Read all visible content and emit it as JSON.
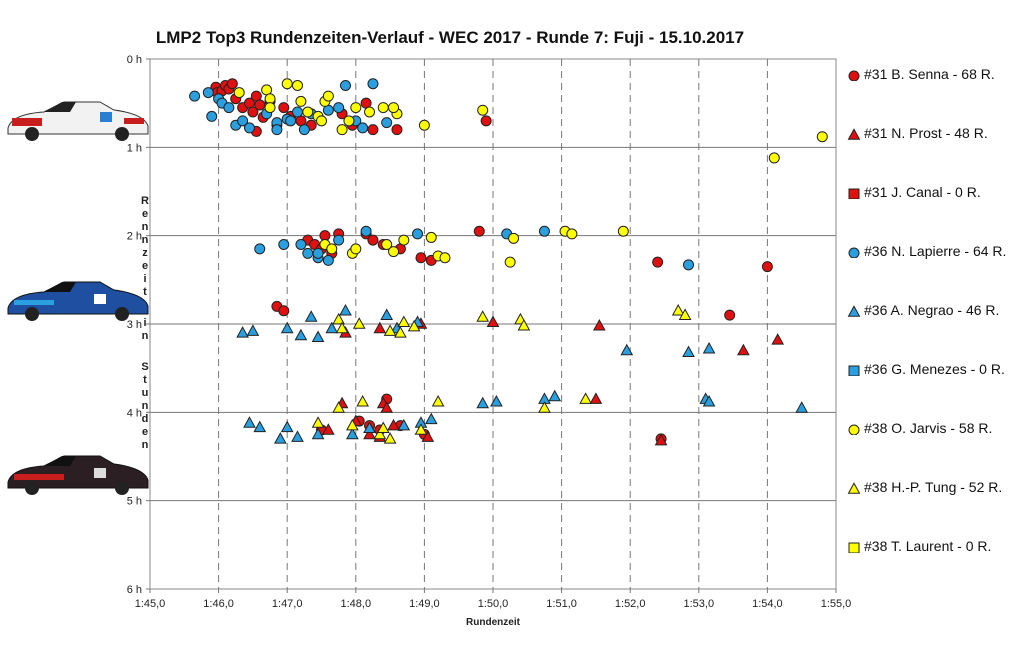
{
  "chart_data": {
    "type": "scatter",
    "title": "LMP2  Top3 Rundenzeiten-Verlauf  - WEC 2017  - Runde 7: Fuji  - 15.10.2017",
    "xlabel": "Rundenzeit",
    "ylabel": "Rennzeit in Stunden",
    "x_ticks": [
      "1:45,0",
      "1:46,0",
      "1:47,0",
      "1:48,0",
      "1:49,0",
      "1:50,0",
      "1:51,0",
      "1:52,0",
      "1:53,0",
      "1:54,0",
      "1:55,0"
    ],
    "y_ticks": [
      "0 h",
      "1 h",
      "2 h",
      "3 h",
      "4 h",
      "5 h",
      "6 h"
    ],
    "xlim": [
      105,
      115
    ],
    "ylim": [
      0,
      6
    ],
    "grid": "dashed-vertical, solid-horizontal",
    "legend_position": "right",
    "series": [
      {
        "name": "#31 B. Senna - 68 R.",
        "marker": "circle",
        "color": "#e01010",
        "points": [
          [
            105.96,
            0.32
          ],
          [
            105.98,
            0.38
          ],
          [
            106.05,
            0.36
          ],
          [
            106.1,
            0.3
          ],
          [
            106.15,
            0.34
          ],
          [
            106.2,
            0.28
          ],
          [
            106.25,
            0.45
          ],
          [
            106.35,
            0.55
          ],
          [
            106.45,
            0.5
          ],
          [
            106.5,
            0.6
          ],
          [
            106.55,
            0.42
          ],
          [
            106.6,
            0.52
          ],
          [
            106.65,
            0.66
          ],
          [
            106.75,
            0.48
          ],
          [
            106.85,
            0.75
          ],
          [
            106.95,
            0.55
          ],
          [
            107.05,
            0.65
          ],
          [
            107.2,
            0.7
          ],
          [
            107.35,
            0.75
          ],
          [
            107.8,
            0.62
          ],
          [
            107.95,
            0.75
          ],
          [
            108.15,
            0.5
          ],
          [
            108.25,
            0.8
          ],
          [
            108.6,
            0.8
          ],
          [
            106.55,
            0.82
          ],
          [
            109.9,
            0.7
          ],
          [
            107.3,
            2.05
          ],
          [
            107.4,
            2.1
          ],
          [
            107.5,
            2.15
          ],
          [
            107.55,
            2.0
          ],
          [
            107.65,
            2.2
          ],
          [
            107.75,
            1.98
          ],
          [
            108.15,
            1.98
          ],
          [
            108.25,
            2.05
          ],
          [
            108.4,
            2.1
          ],
          [
            108.65,
            2.15
          ],
          [
            108.95,
            2.25
          ],
          [
            109.1,
            2.28
          ],
          [
            109.8,
            1.95
          ],
          [
            112.4,
            2.3
          ],
          [
            114.0,
            2.35
          ],
          [
            106.85,
            2.8
          ],
          [
            106.95,
            2.85
          ],
          [
            113.45,
            2.9
          ],
          [
            108.45,
            3.85
          ],
          [
            108.65,
            4.15
          ],
          [
            107.5,
            4.2
          ],
          [
            108.2,
            4.15
          ],
          [
            108.05,
            4.1
          ],
          [
            108.35,
            4.2
          ],
          [
            109.0,
            4.25
          ],
          [
            112.45,
            4.3
          ]
        ]
      },
      {
        "name": "#31 N. Prost - 48 R.",
        "marker": "triangle",
        "color": "#e01010",
        "points": [
          [
            107.85,
            3.1
          ],
          [
            108.35,
            3.05
          ],
          [
            108.95,
            3.0
          ],
          [
            110.0,
            2.98
          ],
          [
            111.55,
            3.02
          ],
          [
            113.65,
            3.3
          ],
          [
            114.15,
            3.18
          ],
          [
            108.4,
            3.9
          ],
          [
            108.45,
            3.95
          ],
          [
            107.8,
            3.9
          ],
          [
            108.0,
            4.1
          ],
          [
            111.5,
            3.85
          ],
          [
            107.6,
            4.2
          ],
          [
            108.2,
            4.25
          ],
          [
            108.35,
            4.28
          ],
          [
            112.45,
            4.32
          ],
          [
            108.55,
            4.15
          ],
          [
            109.05,
            4.28
          ]
        ]
      },
      {
        "name": "#31 J. Canal - 0 R.",
        "marker": "square",
        "color": "#e01010",
        "points": []
      },
      {
        "name": "#36 N. Lapierre - 64 R.",
        "marker": "circle",
        "color": "#2a9fe0",
        "points": [
          [
            105.65,
            0.42
          ],
          [
            105.85,
            0.38
          ],
          [
            105.9,
            0.65
          ],
          [
            106.0,
            0.45
          ],
          [
            106.05,
            0.5
          ],
          [
            106.15,
            0.55
          ],
          [
            106.25,
            0.75
          ],
          [
            106.35,
            0.7
          ],
          [
            106.45,
            0.78
          ],
          [
            106.7,
            0.62
          ],
          [
            106.85,
            0.72
          ],
          [
            107.0,
            0.68
          ],
          [
            107.15,
            0.6
          ],
          [
            107.25,
            0.8
          ],
          [
            107.35,
            0.62
          ],
          [
            107.6,
            0.58
          ],
          [
            107.75,
            0.55
          ],
          [
            107.85,
            0.3
          ],
          [
            108.0,
            0.7
          ],
          [
            108.1,
            0.78
          ],
          [
            108.25,
            0.28
          ],
          [
            108.45,
            0.72
          ],
          [
            107.05,
            0.7
          ],
          [
            106.85,
            0.8
          ],
          [
            106.6,
            2.15
          ],
          [
            106.95,
            2.1
          ],
          [
            107.2,
            2.1
          ],
          [
            107.3,
            2.2
          ],
          [
            107.45,
            2.25
          ],
          [
            107.6,
            2.28
          ],
          [
            107.75,
            2.05
          ],
          [
            108.9,
            1.98
          ],
          [
            110.2,
            1.98
          ],
          [
            110.75,
            1.95
          ],
          [
            112.85,
            2.33
          ],
          [
            107.45,
            2.2
          ],
          [
            108.15,
            1.95
          ]
        ]
      },
      {
        "name": "#36 A. Negrao - 46 R.",
        "marker": "triangle",
        "color": "#2a9fe0",
        "points": [
          [
            106.35,
            3.1
          ],
          [
            106.5,
            3.08
          ],
          [
            107.0,
            3.05
          ],
          [
            107.2,
            3.13
          ],
          [
            107.35,
            2.92
          ],
          [
            107.45,
            3.15
          ],
          [
            107.85,
            2.85
          ],
          [
            107.65,
            3.05
          ],
          [
            108.45,
            2.9
          ],
          [
            108.6,
            3.05
          ],
          [
            108.9,
            2.98
          ],
          [
            111.95,
            3.3
          ],
          [
            112.85,
            3.32
          ],
          [
            113.15,
            3.28
          ],
          [
            109.85,
            3.9
          ],
          [
            110.05,
            3.88
          ],
          [
            110.75,
            3.85
          ],
          [
            110.9,
            3.82
          ],
          [
            113.1,
            3.85
          ],
          [
            114.5,
            3.95
          ],
          [
            106.45,
            4.12
          ],
          [
            106.6,
            4.17
          ],
          [
            106.9,
            4.3
          ],
          [
            107.0,
            4.17
          ],
          [
            107.15,
            4.28
          ],
          [
            107.45,
            4.25
          ],
          [
            107.95,
            4.25
          ],
          [
            108.2,
            4.18
          ],
          [
            108.7,
            4.15
          ],
          [
            108.95,
            4.12
          ],
          [
            109.1,
            4.08
          ],
          [
            113.15,
            3.88
          ]
        ]
      },
      {
        "name": "#36 G. Menezes - 0 R.",
        "marker": "square",
        "color": "#2a9fe0",
        "points": []
      },
      {
        "name": "#38 O. Jarvis - 58 R.",
        "marker": "circle",
        "color": "#ffff00",
        "points": [
          [
            106.3,
            0.38
          ],
          [
            106.7,
            0.35
          ],
          [
            106.75,
            0.45
          ],
          [
            107.0,
            0.28
          ],
          [
            107.15,
            0.3
          ],
          [
            107.2,
            0.48
          ],
          [
            107.3,
            0.6
          ],
          [
            107.45,
            0.65
          ],
          [
            107.5,
            0.7
          ],
          [
            107.55,
            0.48
          ],
          [
            107.6,
            0.42
          ],
          [
            107.8,
            0.8
          ],
          [
            107.9,
            0.7
          ],
          [
            108.0,
            0.55
          ],
          [
            108.2,
            0.6
          ],
          [
            108.4,
            0.55
          ],
          [
            108.6,
            0.62
          ],
          [
            108.55,
            0.55
          ],
          [
            109.0,
            0.75
          ],
          [
            109.85,
            0.58
          ],
          [
            114.8,
            0.88
          ],
          [
            114.1,
            1.12
          ],
          [
            106.75,
            0.55
          ],
          [
            107.55,
            2.1
          ],
          [
            107.65,
            2.15
          ],
          [
            107.95,
            2.2
          ],
          [
            108.0,
            2.15
          ],
          [
            108.55,
            2.18
          ],
          [
            108.7,
            2.05
          ],
          [
            109.1,
            2.02
          ],
          [
            109.2,
            2.23
          ],
          [
            109.3,
            2.25
          ],
          [
            110.3,
            2.03
          ],
          [
            110.25,
            2.3
          ],
          [
            111.05,
            1.95
          ],
          [
            111.15,
            1.98
          ],
          [
            111.9,
            1.95
          ],
          [
            108.45,
            2.1
          ]
        ]
      },
      {
        "name": "#38 H.-P. Tung - 52 R.",
        "marker": "triangle",
        "color": "#ffff00",
        "points": [
          [
            107.75,
            2.95
          ],
          [
            107.8,
            3.05
          ],
          [
            108.05,
            3.0
          ],
          [
            108.5,
            3.08
          ],
          [
            108.7,
            2.98
          ],
          [
            108.85,
            3.03
          ],
          [
            108.65,
            3.1
          ],
          [
            109.85,
            2.92
          ],
          [
            110.4,
            2.95
          ],
          [
            110.45,
            3.02
          ],
          [
            112.7,
            2.85
          ],
          [
            112.8,
            2.9
          ],
          [
            107.75,
            3.95
          ],
          [
            108.1,
            3.88
          ],
          [
            109.2,
            3.88
          ],
          [
            110.75,
            3.95
          ],
          [
            111.35,
            3.85
          ],
          [
            107.45,
            4.12
          ],
          [
            107.95,
            4.15
          ],
          [
            108.35,
            4.25
          ],
          [
            108.5,
            4.3
          ],
          [
            108.95,
            4.2
          ],
          [
            108.4,
            4.18
          ]
        ]
      },
      {
        "name": "#38 T. Laurent - 0 R.",
        "marker": "square",
        "color": "#ffff00",
        "points": []
      }
    ]
  },
  "car_images": [
    "car-31-icon",
    "car-36-icon",
    "car-38-icon"
  ]
}
